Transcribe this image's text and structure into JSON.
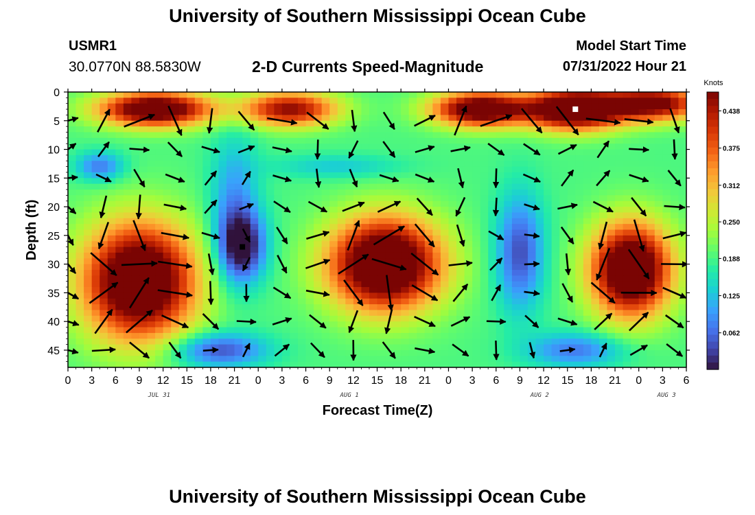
{
  "page": {
    "title": "University of Southern Mississippi Ocean Cube",
    "title_repeat": "University of Southern Mississippi Ocean Cube",
    "station": "USMR1",
    "coordinates": "30.0770N  88.5830W",
    "model_start_label": "Model Start Time",
    "model_start_value": "07/31/2022 Hour 21"
  },
  "chart_data": {
    "type": "heatmap",
    "title": "2-D Currents Speed-Magnitude",
    "xlabel": "Forecast Time(Z)",
    "ylabel": "Depth (ft)",
    "colorbar_label": "Knots",
    "colorbar_ticks": [
      "0.438",
      "0.375",
      "0.312",
      "0.250",
      "0.188",
      "0.125",
      "0.062"
    ],
    "colorbar_range": [
      0.0,
      0.47
    ],
    "colormap": [
      "#30123b",
      "#4145ab",
      "#4675ed",
      "#39a2fc",
      "#1bcfd4",
      "#24eca6",
      "#61fc6c",
      "#a4fc3b",
      "#d1e834",
      "#f3c63a",
      "#fe9b2d",
      "#f36315",
      "#d93806",
      "#b11901",
      "#7a0403"
    ],
    "x_range_hours": [
      0,
      78
    ],
    "x_tick_labels": [
      "0",
      "3",
      "6",
      "9",
      "12",
      "15",
      "18",
      "21",
      "0",
      "3",
      "6",
      "9",
      "12",
      "15",
      "18",
      "21",
      "0",
      "3",
      "6",
      "9",
      "12",
      "15",
      "18",
      "21",
      "0",
      "3",
      "6"
    ],
    "date_labels": [
      {
        "label": "JUL 31",
        "hour": 11.5
      },
      {
        "label": "AUG 1",
        "hour": 35.5
      },
      {
        "label": "AUG 2",
        "hour": 59.5
      },
      {
        "label": "AUG 3",
        "hour": 75.5
      }
    ],
    "y_range_ft": [
      0,
      48
    ],
    "y_ticks": [
      0,
      5,
      10,
      15,
      20,
      25,
      30,
      35,
      40,
      45
    ],
    "speed_features": [
      {
        "hour": 11,
        "depth": 3,
        "speed": 0.36,
        "sx": 7,
        "sy": 3
      },
      {
        "hour": 28,
        "depth": 3,
        "speed": 0.27,
        "sx": 6,
        "sy": 3
      },
      {
        "hour": 52,
        "depth": 3,
        "speed": 0.35,
        "sx": 6,
        "sy": 3
      },
      {
        "hour": 64,
        "depth": 3,
        "speed": 0.4,
        "sx": 6,
        "sy": 3.5
      },
      {
        "hour": 74,
        "depth": 2,
        "speed": 0.3,
        "sx": 6,
        "sy": 3
      },
      {
        "hour": 9,
        "depth": 33,
        "speed": 0.39,
        "sx": 7,
        "sy": 10
      },
      {
        "hour": 40,
        "depth": 30,
        "speed": 0.4,
        "sx": 7,
        "sy": 8
      },
      {
        "hour": 71,
        "depth": 31,
        "speed": 0.39,
        "sx": 5,
        "sy": 8
      },
      {
        "hour": 4,
        "depth": 13,
        "speed": -0.12,
        "sx": 3,
        "sy": 2.5
      },
      {
        "hour": 22,
        "depth": 27,
        "speed": -0.18,
        "sx": 3,
        "sy": 6
      },
      {
        "hour": 21,
        "depth": 20,
        "speed": -0.1,
        "sx": 3,
        "sy": 12
      },
      {
        "hour": 57,
        "depth": 28,
        "speed": -0.15,
        "sx": 3,
        "sy": 10
      },
      {
        "hour": 19,
        "depth": 45,
        "speed": -0.15,
        "sx": 6,
        "sy": 3
      },
      {
        "hour": 64,
        "depth": 45,
        "speed": -0.12,
        "sx": 6,
        "sy": 3
      },
      {
        "hour": 34,
        "depth": 13,
        "speed": -0.06,
        "sx": 8,
        "sy": 2
      }
    ],
    "markers": [
      {
        "hour": 22,
        "depth": 27,
        "color": "#000000"
      },
      {
        "hour": 64,
        "depth": 3,
        "color": "#ffffff"
      }
    ],
    "vectors_hours": [
      0,
      4.5,
      9,
      13.5,
      18,
      22.5,
      27,
      31.5,
      36,
      40.5,
      45,
      49.5,
      54,
      58.5,
      63,
      67.5,
      72,
      76.5
    ],
    "vectors_depths": [
      5,
      10,
      15,
      20,
      25,
      30,
      35,
      40,
      45
    ]
  }
}
